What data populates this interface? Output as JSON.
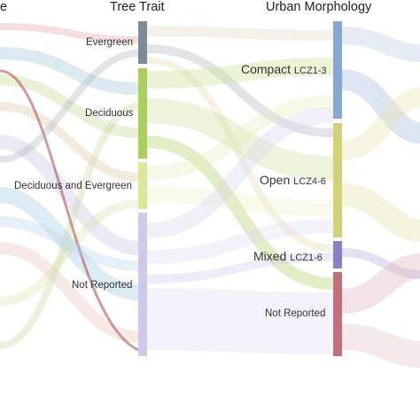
{
  "headers": {
    "left_partial": "e",
    "tree_trait": "Tree Trait",
    "urban_morphology": "Urban Morphology"
  },
  "tree_trait_nodes": [
    {
      "id": "evergreen",
      "label": "Evergreen",
      "color": "#7d8b96"
    },
    {
      "id": "deciduous",
      "label": "Deciduous",
      "color": "#a9cf5c"
    },
    {
      "id": "deciduous_evergreen",
      "label": "Deciduous and Evergreen",
      "color": "#dde79a"
    },
    {
      "id": "not_reported",
      "label": "Not Reported",
      "color": "#cfc9ea"
    }
  ],
  "urban_morphology_nodes": [
    {
      "id": "compact",
      "label": "Compact",
      "sub": "LCZ1-3",
      "color": "#87a8d4"
    },
    {
      "id": "open",
      "label": "Open",
      "sub": "LCZ4-6",
      "color": "#d2d27a"
    },
    {
      "id": "mixed",
      "label": "Mixed",
      "sub": "LCZ1-6",
      "color": "#8a80c8"
    },
    {
      "id": "not_reported",
      "label": "Not Reported",
      "sub": "",
      "color": "#c0707a"
    }
  ],
  "colors": {
    "background": "#ffffff",
    "flow_opacity": 0.35
  }
}
